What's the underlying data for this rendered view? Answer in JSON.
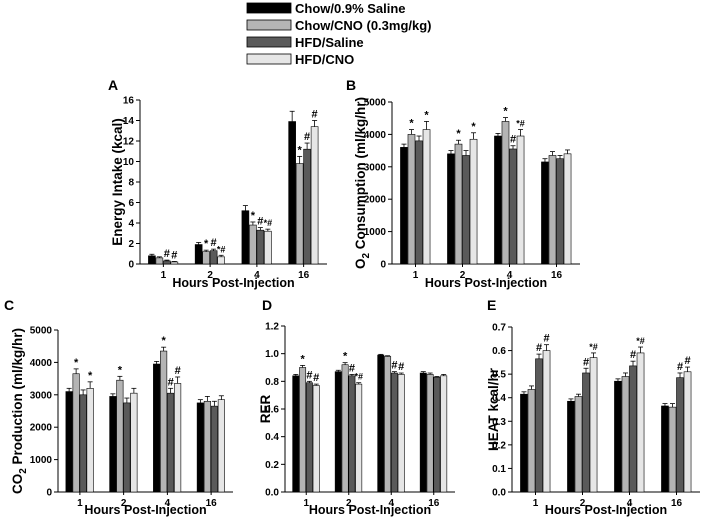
{
  "legend": {
    "entries": [
      {
        "label": "Chow/0.9% Saline",
        "color": "#000000"
      },
      {
        "label": "Chow/CNO (0.3mg/kg)",
        "color": "#b4b4b4"
      },
      {
        "label": "HFD/Saline",
        "color": "#5a5a5a"
      },
      {
        "label": "HFD/CNO",
        "color": "#e6e6e6"
      }
    ]
  },
  "chart_data": [
    {
      "id": "A",
      "type": "bar",
      "title": "A",
      "xlabel": "Hours Post-Injection",
      "ylabel": "Energy Intake (kcal)",
      "ylim": [
        0,
        16
      ],
      "yticks": [
        "0",
        "2",
        "4",
        "6",
        "8",
        "10",
        "12",
        "14",
        "16"
      ],
      "categories": [
        "1",
        "2",
        "4",
        "16"
      ],
      "series": [
        {
          "name": "Chow/0.9% Saline",
          "values": [
            0.8,
            1.9,
            5.2,
            13.9
          ],
          "errors": [
            0.15,
            0.2,
            0.5,
            1.0
          ]
        },
        {
          "name": "Chow/CNO (0.3mg/kg)",
          "values": [
            0.6,
            1.2,
            3.8,
            9.8
          ],
          "errors": [
            0.1,
            0.15,
            0.3,
            0.7
          ]
        },
        {
          "name": "HFD/Saline",
          "values": [
            0.3,
            1.3,
            3.3,
            11.2
          ],
          "errors": [
            0.08,
            0.15,
            0.25,
            0.6
          ]
        },
        {
          "name": "HFD/CNO",
          "values": [
            0.2,
            0.7,
            3.2,
            13.4
          ],
          "errors": [
            0.05,
            0.15,
            0.2,
            0.6
          ]
        }
      ],
      "annotations": [
        [
          "",
          "",
          "#",
          "#"
        ],
        [
          "",
          "*",
          "#",
          "*#"
        ],
        [
          "",
          "*",
          "#",
          "*#"
        ],
        [
          "",
          "*",
          "#",
          "#"
        ]
      ]
    },
    {
      "id": "B",
      "type": "bar",
      "title": "B",
      "xlabel": "Hours Post-Injection",
      "ylabel": "O2 Consumption (ml/kg/hr)",
      "ylabel_parts": {
        "pre": "O",
        "sub": "2",
        "post": " Consumption (ml/kg/hr)"
      },
      "ylim": [
        0,
        5000
      ],
      "yticks": [
        "0",
        "1000",
        "2000",
        "3000",
        "4000",
        "5000"
      ],
      "categories": [
        "1",
        "2",
        "4",
        "16"
      ],
      "series": [
        {
          "name": "Chow/0.9% Saline",
          "values": [
            3600,
            3400,
            3950,
            3150
          ],
          "errors": [
            100,
            100,
            80,
            100
          ]
        },
        {
          "name": "Chow/CNO (0.3mg/kg)",
          "values": [
            4000,
            3700,
            4400,
            3350
          ],
          "errors": [
            150,
            120,
            120,
            120
          ]
        },
        {
          "name": "HFD/Saline",
          "values": [
            3800,
            3350,
            3550,
            3250
          ],
          "errors": [
            150,
            150,
            100,
            100
          ]
        },
        {
          "name": "HFD/CNO",
          "values": [
            4150,
            3850,
            3950,
            3400
          ],
          "errors": [
            250,
            200,
            200,
            120
          ]
        }
      ],
      "annotations": [
        [
          "",
          "*",
          "",
          "*"
        ],
        [
          "",
          "*",
          "",
          "*"
        ],
        [
          "",
          "*",
          "#",
          "*#"
        ],
        [
          "",
          "",
          "",
          ""
        ]
      ]
    },
    {
      "id": "C",
      "type": "bar",
      "title": "C",
      "xlabel": "Hours Post-Injection",
      "ylabel": "CO2 Production (ml/kg/hr)",
      "ylabel_parts": {
        "pre": "CO",
        "sub": "2",
        "post": " Production (ml/kg/hr)"
      },
      "ylim": [
        0,
        5000
      ],
      "yticks": [
        "0",
        "1000",
        "2000",
        "3000",
        "4000",
        "5000"
      ],
      "categories": [
        "1",
        "2",
        "4",
        "16"
      ],
      "series": [
        {
          "name": "Chow/0.9% Saline",
          "values": [
            3100,
            2950,
            3950,
            2750
          ],
          "errors": [
            100,
            80,
            80,
            100
          ]
        },
        {
          "name": "Chow/CNO (0.3mg/kg)",
          "values": [
            3650,
            3450,
            4350,
            2800
          ],
          "errors": [
            150,
            120,
            120,
            150
          ]
        },
        {
          "name": "HFD/Saline",
          "values": [
            3000,
            2750,
            3050,
            2650
          ],
          "errors": [
            150,
            150,
            150,
            150
          ]
        },
        {
          "name": "HFD/CNO",
          "values": [
            3200,
            3050,
            3350,
            2850
          ],
          "errors": [
            200,
            150,
            200,
            120
          ]
        }
      ],
      "annotations": [
        [
          "",
          "*",
          "",
          "*"
        ],
        [
          "",
          "*",
          "",
          ""
        ],
        [
          "",
          "*",
          "#",
          "#"
        ],
        [
          "",
          "",
          "",
          ""
        ]
      ]
    },
    {
      "id": "D",
      "type": "bar",
      "title": "D",
      "xlabel": "Hours Post-Injection",
      "ylabel": "RER",
      "ylim": [
        0,
        1.2
      ],
      "yticks": [
        "0.0",
        "0.2",
        "0.4",
        "0.6",
        "0.8",
        "1.0",
        "1.2"
      ],
      "categories": [
        "1",
        "2",
        "4",
        "16"
      ],
      "series": [
        {
          "name": "Chow/0.9% Saline",
          "values": [
            0.84,
            0.87,
            0.99,
            0.86
          ],
          "errors": [
            0.01,
            0.01,
            0.005,
            0.01
          ]
        },
        {
          "name": "Chow/CNO (0.3mg/kg)",
          "values": [
            0.9,
            0.92,
            0.98,
            0.85
          ],
          "errors": [
            0.015,
            0.015,
            0.005,
            0.01
          ]
        },
        {
          "name": "HFD/Saline",
          "values": [
            0.79,
            0.84,
            0.86,
            0.83
          ],
          "errors": [
            0.01,
            0.01,
            0.01,
            0.005
          ]
        },
        {
          "name": "HFD/CNO",
          "values": [
            0.77,
            0.78,
            0.85,
            0.84
          ],
          "errors": [
            0.01,
            0.01,
            0.01,
            0.01
          ]
        }
      ],
      "annotations": [
        [
          "",
          "*",
          "#",
          "#"
        ],
        [
          "",
          "*",
          "#",
          "*#"
        ],
        [
          "",
          "",
          "#",
          "#"
        ],
        [
          "",
          "",
          "",
          ""
        ]
      ]
    },
    {
      "id": "E",
      "type": "bar",
      "title": "E",
      "xlabel": "Hours Post-Injection",
      "ylabel": "HEAT kcal/hr",
      "ylim": [
        0,
        0.7
      ],
      "yticks": [
        "0.0",
        "0.1",
        "0.2",
        "0.3",
        "0.4",
        "0.5",
        "0.6",
        "0.7"
      ],
      "categories": [
        "1",
        "2",
        "4",
        "16"
      ],
      "series": [
        {
          "name": "Chow/0.9% Saline",
          "values": [
            0.415,
            0.385,
            0.47,
            0.365
          ],
          "errors": [
            0.01,
            0.01,
            0.01,
            0.01
          ]
        },
        {
          "name": "Chow/CNO (0.3mg/kg)",
          "values": [
            0.435,
            0.405,
            0.49,
            0.36
          ],
          "errors": [
            0.015,
            0.01,
            0.015,
            0.015
          ]
        },
        {
          "name": "HFD/Saline",
          "values": [
            0.565,
            0.505,
            0.535,
            0.485
          ],
          "errors": [
            0.02,
            0.02,
            0.02,
            0.02
          ]
        },
        {
          "name": "HFD/CNO",
          "values": [
            0.6,
            0.57,
            0.59,
            0.51
          ],
          "errors": [
            0.025,
            0.02,
            0.025,
            0.02
          ]
        }
      ],
      "annotations": [
        [
          "",
          "",
          "#",
          "#"
        ],
        [
          "",
          "",
          "#",
          "*#"
        ],
        [
          "",
          "",
          "#",
          "*#"
        ],
        [
          "",
          "",
          "#",
          "#"
        ]
      ]
    }
  ]
}
